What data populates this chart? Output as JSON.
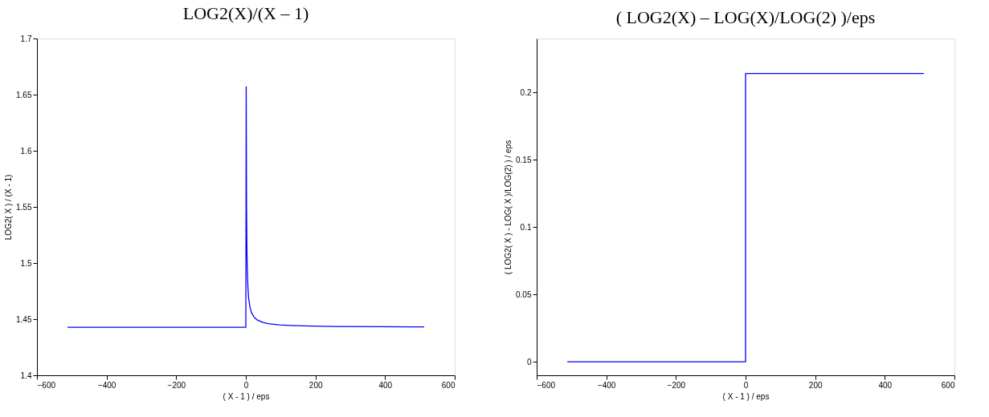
{
  "chart_data": [
    {
      "type": "line",
      "title": "LOG2(X)/(X – 1)",
      "xlabel": "( X - 1 ) / eps",
      "ylabel": "LOG2( X ) / (X - 1)",
      "xlim": [
        -600,
        600
      ],
      "xticks": [
        -600,
        -400,
        -200,
        0,
        200,
        400,
        600
      ],
      "ylim": [
        1.4,
        1.7
      ],
      "yticks": [
        1.4,
        1.45,
        1.5,
        1.55,
        1.6,
        1.65,
        1.7
      ],
      "grid": false,
      "series": [
        {
          "color": "#0000ff",
          "x": [
            -512,
            0,
            1,
            2,
            3,
            4,
            6,
            8,
            12,
            16,
            24,
            32,
            48,
            64,
            96,
            128,
            192,
            256,
            384,
            512
          ],
          "values": [
            1.4427,
            1.4427,
            1.657,
            1.55,
            1.514,
            1.496,
            1.478,
            1.469,
            1.4605,
            1.456,
            1.4516,
            1.4494,
            1.4472,
            1.446,
            1.4449,
            1.4444,
            1.4438,
            1.4435,
            1.4433,
            1.4431
          ]
        }
      ]
    },
    {
      "type": "line",
      "title": "( LOG2(X) – LOG(X)/LOG(2) )/eps",
      "xlabel": "( X - 1 ) / eps",
      "ylabel": "( LOG2( X ) - LOG( X )/LOG(2) ) / eps",
      "xlim": [
        -600,
        600
      ],
      "xticks": [
        -600,
        -400,
        -200,
        0,
        200,
        400,
        600
      ],
      "ylim": [
        -0.01,
        0.24
      ],
      "yticks": [
        0,
        0.05,
        0.1,
        0.15,
        0.2
      ],
      "grid": false,
      "series": [
        {
          "color": "#0000ff",
          "x": [
            -512,
            0,
            0,
            512
          ],
          "values": [
            0,
            0,
            0.214,
            0.214
          ]
        }
      ]
    }
  ]
}
